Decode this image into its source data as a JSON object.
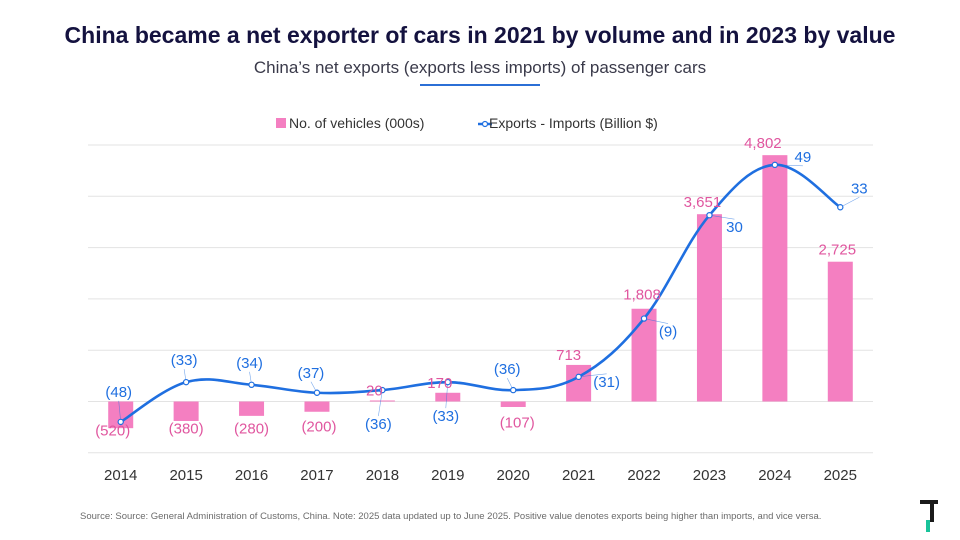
{
  "title": "China became a net exporter of cars in 2021 by volume and in 2023 by value",
  "subtitle": "China’s net exports (exports less imports) of passenger cars",
  "source": "Source: Source: General Administration of Customs, China. Note: 2025 data updated up to June 2025. Positive value denotes exports being higher than imports, and vice versa.",
  "colors": {
    "bars": "#f47fc1",
    "bar_labels": "#e0569f",
    "line": "#1f6fe0",
    "title": "#14123f"
  },
  "chart_data": {
    "type": "bar",
    "categories": [
      "2014",
      "2015",
      "2016",
      "2017",
      "2018",
      "2019",
      "2020",
      "2021",
      "2022",
      "2023",
      "2024",
      "2025"
    ],
    "series": [
      {
        "name": "No. of vehicles (000s)",
        "type": "bar",
        "values": [
          -520,
          -380,
          -280,
          -200,
          20,
          170,
          -107,
          713,
          1808,
          3651,
          4802,
          2725
        ],
        "labels": [
          "(520)",
          "(380)",
          "(280)",
          "(200)",
          "20",
          "170",
          "(107)",
          "713",
          "1,808",
          "3,651",
          "4,802",
          "2,725"
        ]
      },
      {
        "name": "Exports - Imports (Billion $)",
        "type": "line",
        "values": [
          -48,
          -33,
          -34,
          -37,
          -36,
          -33,
          -36,
          -31,
          -9,
          30,
          49,
          33
        ],
        "labels": [
          "(48)",
          "(33)",
          "(34)",
          "(37)",
          "(36)",
          "(33)",
          "(36)",
          "(31)",
          "(9)",
          "30",
          "49",
          "33"
        ]
      }
    ],
    "legend_position": "top-center",
    "grid": true
  }
}
